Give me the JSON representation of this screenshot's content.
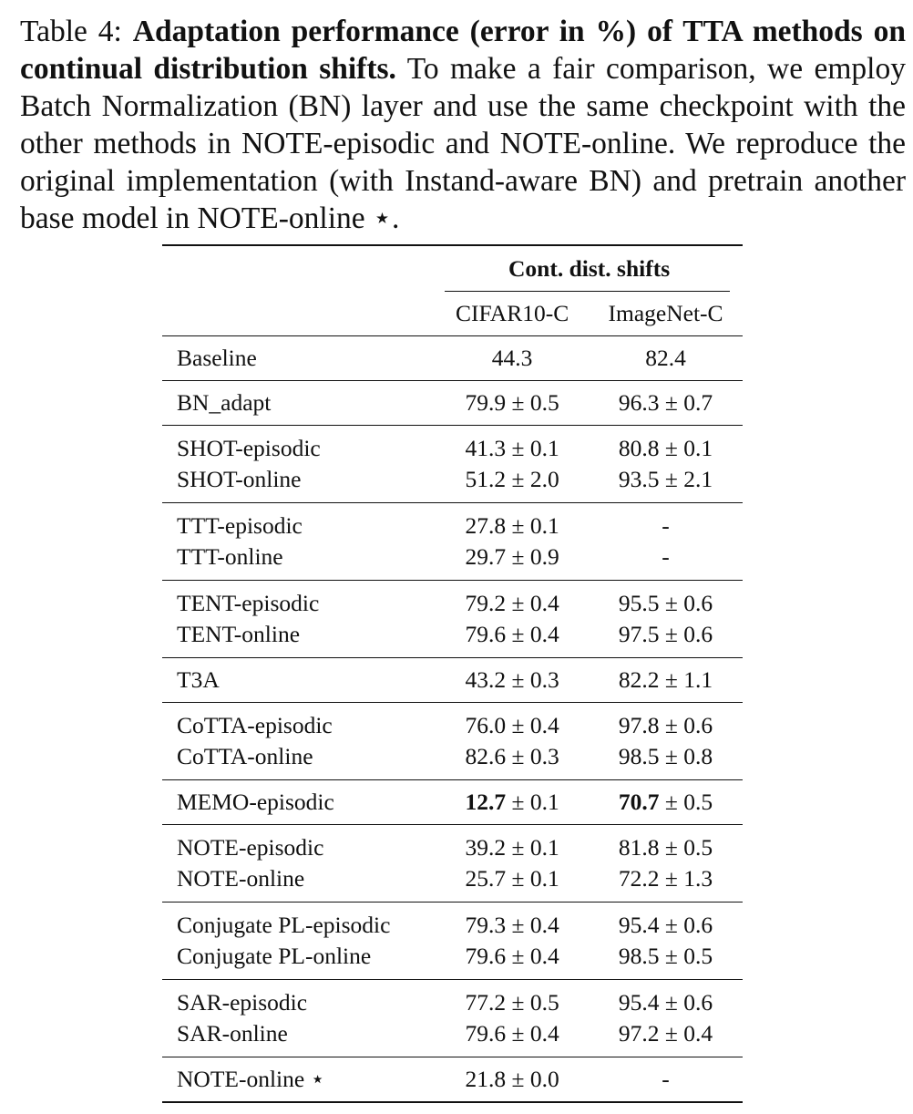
{
  "caption": {
    "label": "Table 4:",
    "bold": "Adaptation performance (error in %) of TTA methods on continual distribution shifts.",
    "rest": "To make a fair comparison, we employ Batch Normalization (BN) layer and use the same checkpoint with the other methods in NOTE-episodic and NOTE-online. We reproduce the original implementation (with Instand-aware BN) and pretrain another base model in NOTE-online ⋆."
  },
  "table": {
    "group_header": "Cont. dist. shifts",
    "columns": [
      "CIFAR10-C",
      "ImageNet-C"
    ],
    "groups": [
      {
        "rows": [
          {
            "method": "Baseline",
            "c1": "44.3",
            "c2": "82.4"
          }
        ]
      },
      {
        "rows": [
          {
            "method": "BN_adapt",
            "c1": "79.9 ± 0.5",
            "c2": "96.3 ± 0.7"
          }
        ]
      },
      {
        "rows": [
          {
            "method": "SHOT-episodic",
            "c1": "41.3 ± 0.1",
            "c2": "80.8 ± 0.1"
          },
          {
            "method": "SHOT-online",
            "c1": "51.2 ± 2.0",
            "c2": "93.5 ± 2.1"
          }
        ]
      },
      {
        "rows": [
          {
            "method": "TTT-episodic",
            "c1": "27.8 ± 0.1",
            "c2": "-"
          },
          {
            "method": "TTT-online",
            "c1": "29.7 ± 0.9",
            "c2": "-"
          }
        ]
      },
      {
        "rows": [
          {
            "method": "TENT-episodic",
            "c1": "79.2 ± 0.4",
            "c2": "95.5 ± 0.6"
          },
          {
            "method": "TENT-online",
            "c1": "79.6 ± 0.4",
            "c2": "97.5 ± 0.6"
          }
        ]
      },
      {
        "rows": [
          {
            "method": "T3A",
            "c1": "43.2 ± 0.3",
            "c2": "82.2 ± 1.1"
          }
        ]
      },
      {
        "rows": [
          {
            "method": "CoTTA-episodic",
            "c1": "76.0 ± 0.4",
            "c2": "97.8 ± 0.6"
          },
          {
            "method": "CoTTA-online",
            "c1": "82.6 ± 0.3",
            "c2": "98.5 ± 0.8"
          }
        ]
      },
      {
        "rows": [
          {
            "method": "MEMO-episodic",
            "c1_bold": "12.7",
            "c1_rest": " ± 0.1",
            "c2_bold": "70.7",
            "c2_rest": " ± 0.5"
          }
        ]
      },
      {
        "rows": [
          {
            "method": "NOTE-episodic",
            "c1": "39.2 ± 0.1",
            "c2": "81.8 ± 0.5"
          },
          {
            "method": "NOTE-online",
            "c1": "25.7 ± 0.1",
            "c2": "72.2 ± 1.3"
          }
        ]
      },
      {
        "rows": [
          {
            "method": "Conjugate PL-episodic",
            "c1": "79.3 ± 0.4",
            "c2": "95.4 ± 0.6"
          },
          {
            "method": "Conjugate PL-online",
            "c1": "79.6 ± 0.4",
            "c2": "98.5 ± 0.5"
          }
        ]
      },
      {
        "rows": [
          {
            "method": "SAR-episodic",
            "c1": "77.2 ± 0.5",
            "c2": "95.4 ± 0.6"
          },
          {
            "method": "SAR-online",
            "c1": "79.6 ± 0.4",
            "c2": "97.2 ± 0.4"
          }
        ]
      },
      {
        "rows": [
          {
            "method": "NOTE-online ⋆",
            "c1": "21.8 ± 0.0",
            "c2": "-"
          }
        ]
      }
    ]
  }
}
